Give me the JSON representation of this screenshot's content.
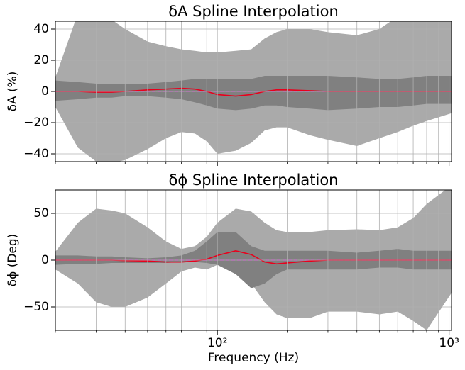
{
  "chart_data": [
    {
      "type": "band",
      "title": "δA Spline Interpolation",
      "ylabel": "δA  (%)",
      "x": [
        20,
        25,
        30,
        35,
        40,
        50,
        60,
        70,
        80,
        90,
        100,
        120,
        140,
        160,
        180,
        200,
        250,
        300,
        400,
        500,
        600,
        700,
        800,
        1024
      ],
      "bands": [
        {
          "color": "#aaaaaa",
          "upper": [
            9,
            50,
            50,
            46,
            40,
            32,
            29,
            27,
            26,
            25,
            25,
            26,
            27,
            34,
            38,
            40,
            40,
            38,
            36,
            40,
            48,
            50,
            50,
            50
          ],
          "lower": [
            -10,
            -36,
            -45,
            -46,
            -44,
            -37,
            -30,
            -26,
            -27,
            -32,
            -40,
            -38,
            -33,
            -25,
            -23,
            -23,
            -28,
            -31,
            -35,
            -30,
            -26,
            -22,
            -19,
            -14
          ]
        },
        {
          "color": "#808080",
          "upper": [
            7,
            6,
            5,
            5,
            5,
            5,
            6,
            7,
            8,
            8,
            8,
            8,
            8,
            10,
            10,
            10,
            10,
            10,
            9,
            8,
            8,
            9,
            10,
            10
          ],
          "lower": [
            -6,
            -5,
            -4,
            -4,
            -3,
            -3,
            -4,
            -5,
            -7,
            -9,
            -11,
            -12,
            -11,
            -9,
            -9,
            -10,
            -11,
            -12,
            -11,
            -10,
            -10,
            -9,
            -8,
            -8
          ]
        }
      ],
      "series": [
        {
          "color": "#e8001c",
          "values": [
            0,
            0,
            -0.5,
            -0.5,
            0,
            1,
            1.5,
            2,
            1.5,
            0,
            -2,
            -3,
            -2,
            0,
            1,
            1,
            0.5,
            0,
            0,
            0,
            0,
            0,
            0,
            0
          ]
        }
      ],
      "hline": 0,
      "hline_color": "#bf40bf",
      "xscale": "log",
      "xlim": [
        20,
        1024
      ],
      "ylim": [
        -45,
        45
      ],
      "xticks": [
        100,
        1000
      ],
      "xticklabels": false,
      "xminorticks": [
        20,
        30,
        40,
        50,
        60,
        70,
        80,
        90,
        200,
        300,
        400,
        500,
        600,
        700,
        800,
        900
      ],
      "yticks": [
        {
          "value": -40,
          "label": "−40"
        },
        {
          "value": -20,
          "label": "−20"
        },
        0,
        20,
        40
      ],
      "grid": true
    },
    {
      "type": "band",
      "title": "δϕ Spline Interpolation",
      "ylabel": "δϕ (Deg)",
      "xlabel": "Frequency (Hz)",
      "x": [
        20,
        25,
        30,
        35,
        40,
        50,
        60,
        70,
        80,
        90,
        100,
        120,
        140,
        160,
        180,
        200,
        250,
        300,
        400,
        500,
        600,
        700,
        800,
        1024
      ],
      "bands": [
        {
          "color": "#aaaaaa",
          "upper": [
            9,
            40,
            55,
            53,
            50,
            35,
            20,
            12,
            15,
            25,
            40,
            55,
            52,
            40,
            32,
            30,
            30,
            32,
            33,
            32,
            35,
            45,
            60,
            80
          ],
          "lower": [
            -10,
            -25,
            -45,
            -50,
            -50,
            -40,
            -25,
            -12,
            -8,
            -10,
            -5,
            -10,
            -25,
            -45,
            -58,
            -62,
            -62,
            -55,
            -55,
            -58,
            -55,
            -65,
            -75,
            -35
          ]
        },
        {
          "color": "#808080",
          "upper": [
            5,
            5,
            4,
            4,
            3,
            2,
            3,
            5,
            10,
            20,
            30,
            30,
            15,
            10,
            10,
            10,
            10,
            10,
            8,
            10,
            12,
            10,
            10,
            10
          ],
          "lower": [
            -5,
            -4,
            -4,
            -3,
            -3,
            -3,
            -3,
            -2,
            -2,
            -3,
            -5,
            -15,
            -30,
            -25,
            -15,
            -10,
            -10,
            -10,
            -10,
            -8,
            -8,
            -10,
            -10,
            -10
          ]
        }
      ],
      "series": [
        {
          "color": "#e8001c",
          "values": [
            0,
            0,
            0,
            0,
            -0.5,
            -1,
            -2,
            -2,
            -1,
            1,
            5,
            10,
            6,
            -2,
            -4,
            -3,
            -1,
            0,
            0,
            0,
            0,
            0,
            0,
            0
          ]
        }
      ],
      "hline": 0,
      "hline_color": "#bf40bf",
      "xscale": "log",
      "xlim": [
        20,
        1024
      ],
      "ylim": [
        -75,
        75
      ],
      "xticks": [
        {
          "value": 100,
          "label": "10²"
        },
        {
          "value": 1000,
          "label": "10³"
        }
      ],
      "xticklabels": true,
      "xminorticks": [
        20,
        30,
        40,
        50,
        60,
        70,
        80,
        90,
        200,
        300,
        400,
        500,
        600,
        700,
        800,
        900
      ],
      "yticks": [
        {
          "value": -50,
          "label": "−50"
        },
        0,
        50
      ],
      "grid": true
    }
  ]
}
